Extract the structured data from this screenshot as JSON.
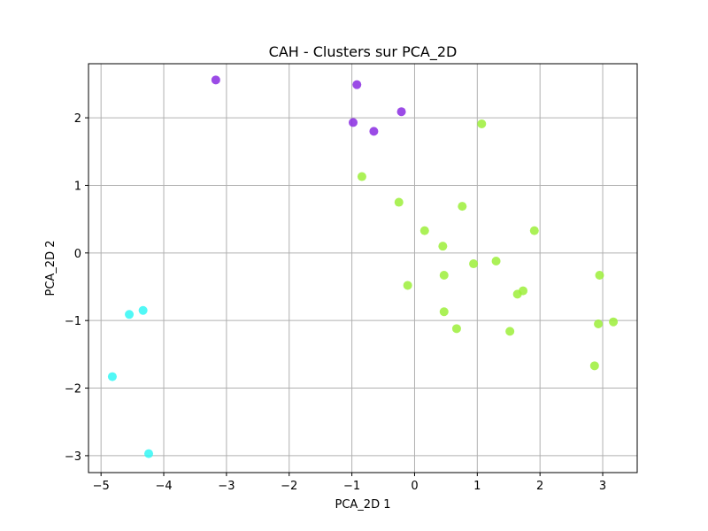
{
  "chart_data": {
    "type": "scatter",
    "title": "CAH - Clusters sur PCA_2D",
    "xlabel": "PCA_2D 1",
    "ylabel": "PCA_2D 2",
    "xlim": [
      -5.2,
      3.55
    ],
    "ylim": [
      -3.25,
      2.8
    ],
    "xticks": [
      -5,
      -4,
      -3,
      -2,
      -1,
      0,
      1,
      2,
      3
    ],
    "yticks": [
      -3,
      -2,
      -1,
      0,
      1,
      2
    ],
    "xtick_labels": [
      "−5",
      "−4",
      "−3",
      "−2",
      "−1",
      "0",
      "1",
      "2",
      "3"
    ],
    "ytick_labels": [
      "−3",
      "−2",
      "−1",
      "0",
      "1",
      "2"
    ],
    "grid": true,
    "series": [
      {
        "color": "#8a2be2",
        "points": [
          {
            "x": -3.17,
            "y": 2.56
          },
          {
            "x": -0.92,
            "y": 2.49
          },
          {
            "x": -0.21,
            "y": 2.09
          },
          {
            "x": -0.98,
            "y": 1.93
          },
          {
            "x": -0.65,
            "y": 1.8
          }
        ]
      },
      {
        "color": "#9cef3a",
        "points": [
          {
            "x": 1.07,
            "y": 1.91
          },
          {
            "x": -0.84,
            "y": 1.13
          },
          {
            "x": -0.25,
            "y": 0.75
          },
          {
            "x": 0.76,
            "y": 0.69
          },
          {
            "x": 0.16,
            "y": 0.33
          },
          {
            "x": 1.91,
            "y": 0.33
          },
          {
            "x": 0.45,
            "y": 0.1
          },
          {
            "x": 1.3,
            "y": -0.12
          },
          {
            "x": 0.94,
            "y": -0.16
          },
          {
            "x": 0.47,
            "y": -0.33
          },
          {
            "x": 2.95,
            "y": -0.33
          },
          {
            "x": -0.11,
            "y": -0.48
          },
          {
            "x": 1.73,
            "y": -0.56
          },
          {
            "x": 1.64,
            "y": -0.61
          },
          {
            "x": 0.47,
            "y": -0.87
          },
          {
            "x": 2.93,
            "y": -1.05
          },
          {
            "x": 3.17,
            "y": -1.02
          },
          {
            "x": 0.67,
            "y": -1.12
          },
          {
            "x": 1.52,
            "y": -1.16
          },
          {
            "x": 2.87,
            "y": -1.67
          }
        ]
      },
      {
        "color": "#33f7f5",
        "points": [
          {
            "x": -4.33,
            "y": -0.85
          },
          {
            "x": -4.55,
            "y": -0.91
          },
          {
            "x": -4.82,
            "y": -1.83
          },
          {
            "x": -4.24,
            "y": -2.97
          }
        ]
      }
    ]
  }
}
